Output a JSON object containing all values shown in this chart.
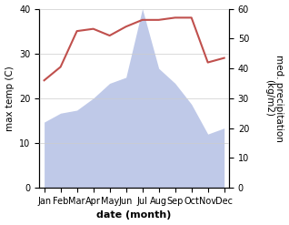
{
  "months": [
    "Jan",
    "Feb",
    "Mar",
    "Apr",
    "May",
    "Jun",
    "Jul",
    "Aug",
    "Sep",
    "Oct",
    "Nov",
    "Dec"
  ],
  "temperature": [
    24,
    27,
    35,
    35.5,
    34,
    36,
    37.5,
    37.5,
    38,
    38,
    28,
    29
  ],
  "precipitation": [
    22,
    25,
    26,
    30,
    35,
    37,
    60,
    40,
    35,
    28,
    18,
    20
  ],
  "temp_color": "#c0504d",
  "precip_fill_color": "#bfc9e8",
  "ylabel_left": "max temp (C)",
  "ylabel_right": "med. precipitation\n(kg/m2)",
  "xlabel": "date (month)",
  "ylim_left": [
    0,
    40
  ],
  "ylim_right": [
    0,
    60
  ],
  "yticks_left": [
    0,
    10,
    20,
    30,
    40
  ],
  "yticks_right": [
    0,
    10,
    20,
    30,
    40,
    50,
    60
  ],
  "background_color": "#ffffff",
  "temp_linewidth": 1.5,
  "xlabel_fontsize": 8,
  "ylabel_fontsize": 7.5
}
